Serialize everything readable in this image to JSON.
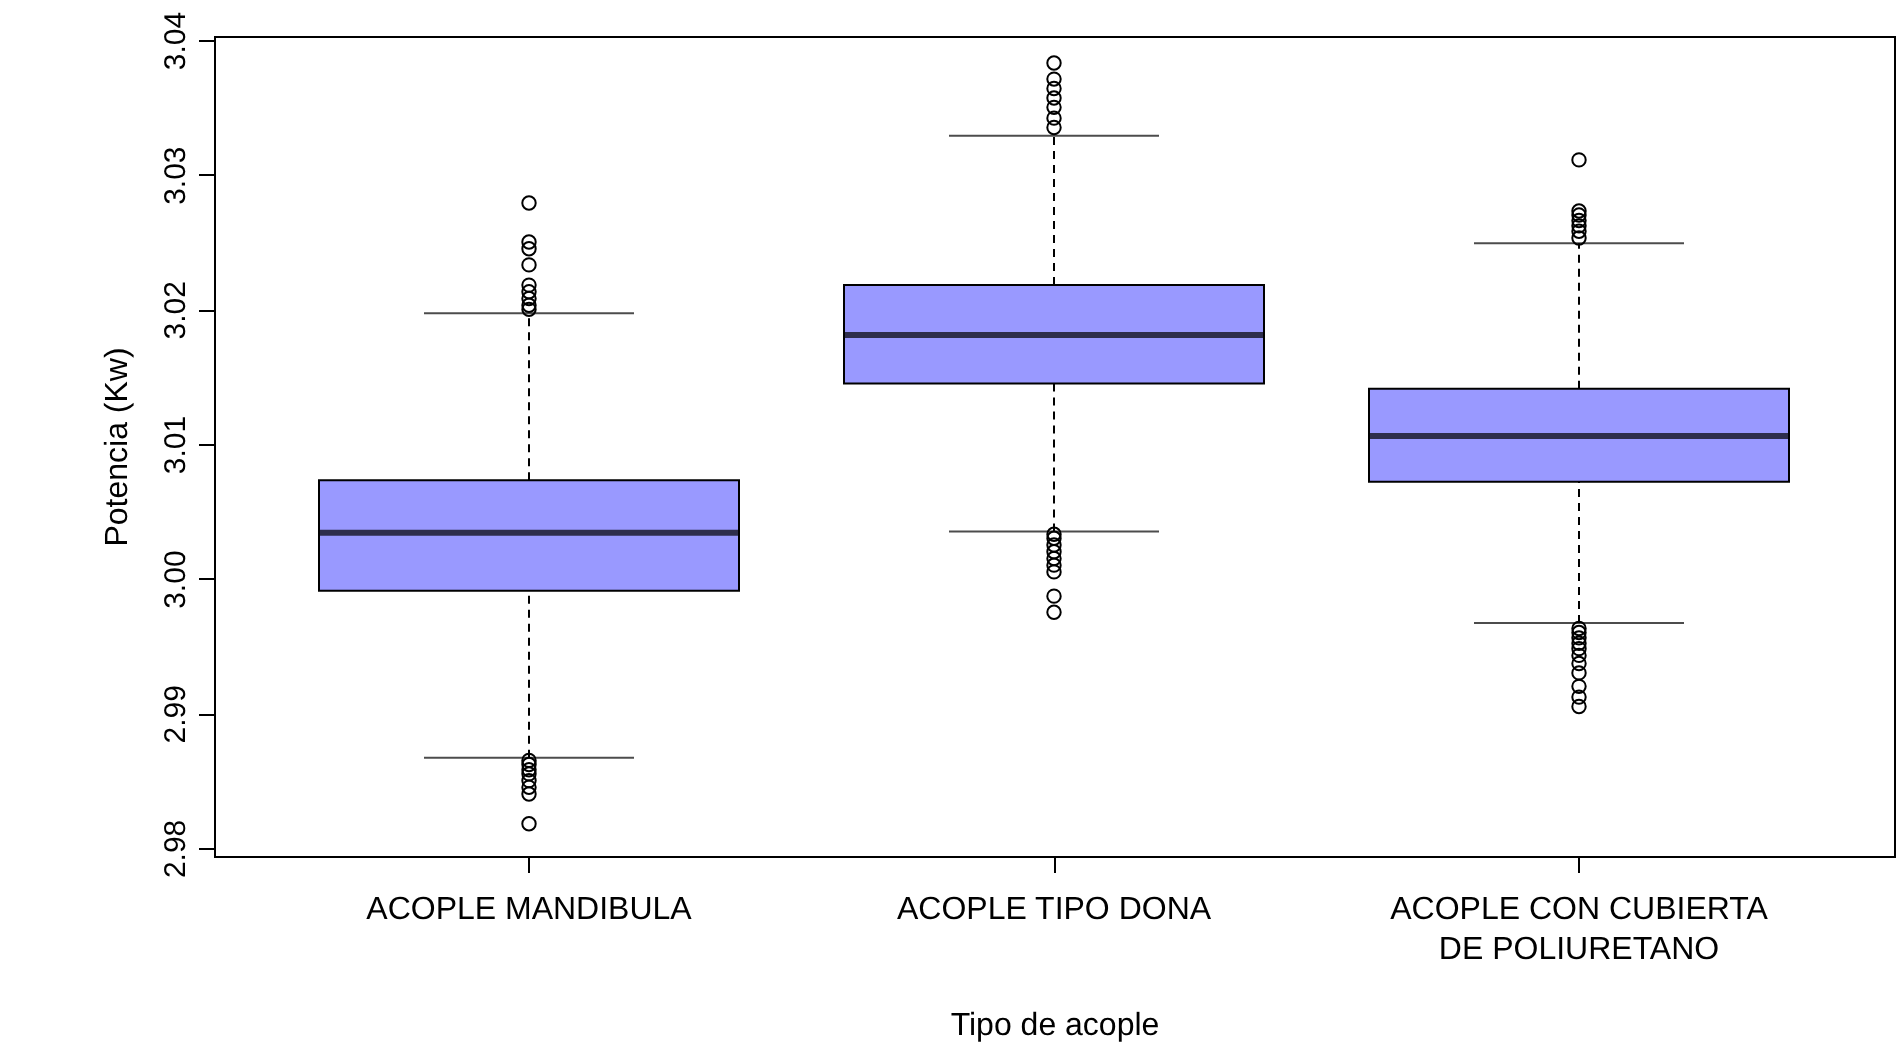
{
  "chart_data": {
    "type": "box",
    "xlabel": "Tipo de acople",
    "ylabel": "Potencia (Kw)",
    "categories": [
      "ACOPLE MANDIBULA",
      "ACOPLE TIPO DONA",
      "ACOPLE CON CUBIERTA\nDE POLIURETANO"
    ],
    "ylim": [
      2.9794,
      3.0403
    ],
    "yticks": [
      2.98,
      2.99,
      {
        "value": 3.0,
        "label": "3.00"
      },
      3.01,
      3.02,
      3.03,
      3.04
    ],
    "grid": false,
    "series": [
      {
        "color": "#9999ff",
        "boxes": [
          {
            "low": 2.9867,
            "q1": 2.9991,
            "median": 3.0034,
            "q3": 3.0073,
            "high": 3.0197,
            "outliers": [
              3.0279,
              3.025,
              3.0245,
              3.0233,
              3.0218,
              3.0213,
              3.0208,
              3.0203,
              3.02,
              2.9865,
              2.9862,
              2.9858,
              2.9855,
              2.985,
              2.9845,
              2.984,
              2.9818
            ]
          },
          {
            "low": 3.0035,
            "q1": 3.0145,
            "median": 3.0181,
            "q3": 3.0218,
            "high": 3.0329,
            "outliers": [
              3.0383,
              3.0371,
              3.0364,
              3.0357,
              3.035,
              3.0342,
              3.0335,
              3.0033,
              3.003,
              3.0025,
              3.002,
              3.0015,
              3.001,
              3.0005,
              2.9987,
              2.9975
            ]
          },
          {
            "low": 2.9967,
            "q1": 3.0072,
            "median": 3.0106,
            "q3": 3.0141,
            "high": 3.0249,
            "outliers": [
              3.0311,
              3.0273,
              3.027,
              3.0266,
              3.0262,
              3.0258,
              3.0253,
              2.9963,
              2.996,
              2.9956,
              2.9952,
              2.9948,
              2.9943,
              2.9937,
              2.993,
              2.992,
              2.9912,
              2.9905
            ]
          }
        ]
      }
    ]
  }
}
